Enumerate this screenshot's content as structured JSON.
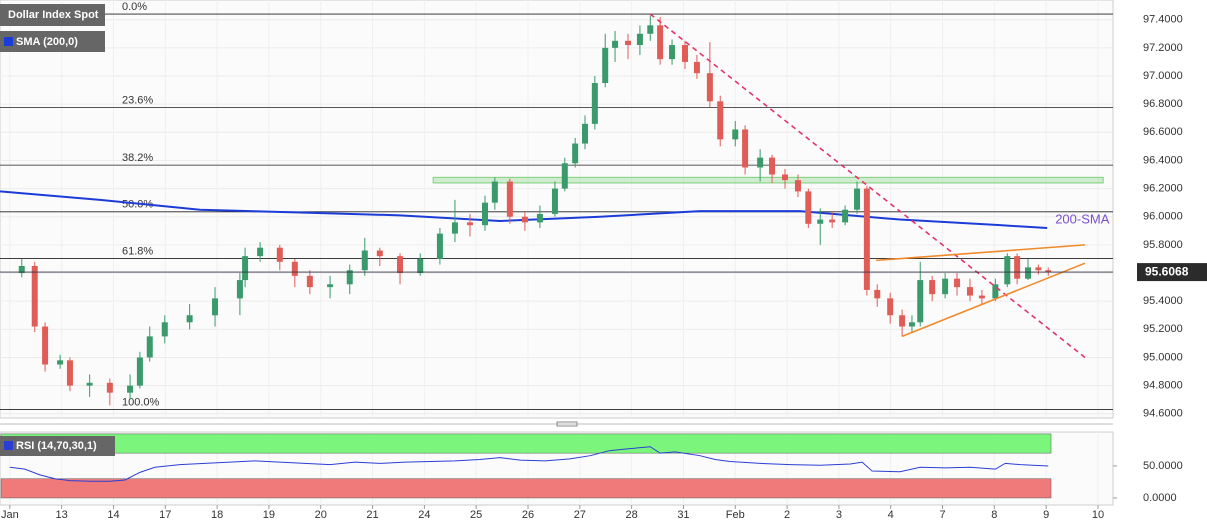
{
  "chart_data": [
    {
      "type": "candlestick",
      "title": "Dollar Index Spot",
      "up_color": "#3a9a6b",
      "down_color": "#e05c57",
      "x": [
        0.23,
        0.48,
        0.68,
        0.97,
        1.16,
        1.54,
        1.93,
        2.32,
        2.51,
        2.7,
        2.99,
        3.47,
        3.96,
        4.44,
        4.54,
        4.83,
        5.21,
        5.5,
        5.79,
        6.18,
        6.56,
        6.85,
        7.14,
        7.53,
        7.92,
        8.3,
        8.59,
        8.88,
        9.17,
        9.36,
        9.65,
        9.94,
        10.23,
        10.52,
        10.71,
        10.91,
        11.1,
        11.29,
        11.49,
        11.68,
        11.93,
        12.16,
        12.36,
        12.55,
        12.78,
        13.03,
        13.26,
        13.51,
        13.71,
        14.0,
        14.19,
        14.48,
        14.71,
        14.96,
        15.21,
        15.41,
        15.64,
        15.87,
        16.12,
        16.35,
        16.54,
        16.74,
        16.99,
        17.22,
        17.41,
        17.57,
        17.8,
        18.05,
        18.28,
        18.53,
        18.76,
        19.02,
        19.25,
        19.44,
        19.65,
        19.85,
        20.04
      ],
      "open": [
        95.6,
        95.65,
        95.22,
        94.95,
        94.98,
        94.8,
        94.82,
        94.75,
        94.8,
        95.0,
        95.15,
        95.25,
        95.3,
        95.42,
        95.55,
        95.72,
        95.78,
        95.68,
        95.58,
        95.5,
        95.52,
        95.62,
        95.76,
        95.72,
        95.6,
        95.7,
        95.88,
        95.96,
        95.94,
        96.1,
        96.25,
        96.0,
        95.96,
        96.02,
        96.2,
        96.38,
        96.52,
        96.66,
        96.95,
        97.2,
        97.25,
        97.22,
        97.3,
        97.36,
        97.12,
        97.22,
        97.1,
        97.02,
        96.82,
        96.55,
        96.62,
        96.35,
        96.42,
        96.3,
        96.26,
        96.18,
        95.95,
        95.98,
        95.96,
        96.05,
        96.2,
        95.48,
        95.42,
        95.3,
        95.22,
        95.25,
        95.55,
        95.45,
        95.56,
        95.5,
        95.44,
        95.42,
        95.52,
        95.72,
        95.56,
        95.64,
        95.62
      ],
      "high": [
        95.7,
        95.68,
        95.25,
        95.02,
        95.0,
        94.88,
        94.85,
        94.88,
        95.04,
        95.22,
        95.3,
        95.38,
        95.5,
        95.6,
        95.78,
        95.82,
        95.8,
        95.7,
        95.62,
        95.58,
        95.66,
        95.85,
        95.78,
        95.74,
        95.74,
        95.92,
        96.12,
        96.02,
        96.15,
        96.28,
        96.27,
        96.03,
        96.08,
        96.25,
        96.42,
        96.56,
        96.72,
        97.0,
        97.3,
        97.32,
        97.3,
        97.36,
        97.43,
        97.42,
        97.26,
        97.25,
        97.15,
        97.24,
        96.86,
        96.68,
        96.65,
        96.48,
        96.44,
        96.34,
        96.3,
        96.2,
        96.06,
        96.04,
        96.08,
        96.25,
        96.22,
        95.52,
        95.46,
        95.34,
        95.3,
        95.68,
        95.58,
        95.6,
        95.6,
        95.56,
        95.48,
        95.56,
        95.74,
        95.74,
        95.7,
        95.66,
        95.64
      ],
      "low": [
        95.57,
        95.18,
        94.9,
        94.92,
        94.76,
        94.72,
        94.66,
        94.7,
        94.78,
        94.97,
        95.1,
        95.2,
        95.22,
        95.3,
        95.5,
        95.68,
        95.62,
        95.5,
        95.45,
        95.42,
        95.45,
        95.58,
        95.65,
        95.52,
        95.58,
        95.66,
        95.82,
        95.86,
        95.9,
        96.05,
        95.95,
        95.9,
        95.92,
        96.0,
        96.18,
        96.35,
        96.48,
        96.62,
        96.92,
        97.1,
        97.12,
        97.15,
        97.25,
        97.08,
        97.08,
        97.05,
        96.98,
        96.78,
        96.5,
        96.5,
        96.3,
        96.25,
        96.24,
        96.2,
        96.14,
        95.92,
        95.8,
        95.92,
        95.94,
        96.02,
        95.44,
        95.36,
        95.24,
        95.15,
        95.18,
        95.22,
        95.4,
        95.42,
        95.44,
        95.4,
        95.38,
        95.4,
        95.5,
        95.52,
        95.55,
        95.59,
        95.58
      ],
      "close": [
        95.65,
        95.22,
        94.95,
        94.98,
        94.8,
        94.82,
        94.75,
        94.8,
        95.0,
        95.15,
        95.25,
        95.3,
        95.42,
        95.55,
        95.72,
        95.78,
        95.68,
        95.58,
        95.5,
        95.52,
        95.62,
        95.76,
        95.72,
        95.6,
        95.7,
        95.88,
        95.96,
        95.94,
        96.1,
        96.25,
        96.0,
        95.96,
        96.02,
        96.2,
        96.38,
        96.52,
        96.66,
        96.95,
        97.2,
        97.25,
        97.22,
        97.3,
        97.36,
        97.12,
        97.22,
        97.1,
        97.02,
        96.82,
        96.55,
        96.62,
        96.35,
        96.42,
        96.3,
        96.26,
        96.18,
        95.95,
        95.98,
        95.96,
        96.05,
        96.2,
        95.48,
        95.42,
        95.3,
        95.22,
        95.25,
        95.55,
        95.45,
        95.56,
        95.5,
        95.44,
        95.42,
        95.52,
        95.72,
        95.56,
        95.64,
        95.62,
        95.6068
      ],
      "series": [
        {
          "name": "SMA (200,0)",
          "color": "#1c3cd8",
          "label": "200-SMA",
          "x": [
            -0.19,
            1.74,
            3.67,
            5.6,
            7.53,
            9.46,
            11.39,
            13.32,
            15.25,
            17.18,
            19.11,
            20.02
          ],
          "values": [
            96.18,
            96.12,
            96.05,
            96.03,
            96.01,
            95.97,
            96.0,
            96.04,
            96.04,
            95.98,
            95.94,
            95.92
          ]
        }
      ],
      "fib_levels": [
        {
          "value": 97.44,
          "label": "0.0%"
        },
        {
          "value": 96.777,
          "label": "23.6%"
        },
        {
          "value": 96.367,
          "label": "38.2%"
        },
        {
          "value": 96.035,
          "label": "50.0%"
        },
        {
          "value": 95.703,
          "label": "61.8%"
        },
        {
          "value": 94.63,
          "label": "100.0%"
        }
      ],
      "trendlines": [
        {
          "color": "#e0356a",
          "dashed": true,
          "x": [
            12.36,
            20.75
          ],
          "values": [
            97.44,
            95.0
          ]
        },
        {
          "color": "#f0892a",
          "dashed": false,
          "x": [
            17.22,
            20.75
          ],
          "values": [
            95.15,
            95.67
          ]
        },
        {
          "color": "#f0892a",
          "dashed": false,
          "x": [
            16.72,
            20.75
          ],
          "values": [
            95.69,
            95.8
          ]
        }
      ],
      "zones": [
        {
          "color": "#7fd07f",
          "x": [
            8.17,
            21.1
          ],
          "values": [
            96.24,
            96.28
          ]
        }
      ],
      "xlim": [
        -0.19,
        21.29
      ],
      "ylim": [
        94.57,
        97.54
      ],
      "xticks": [
        {
          "value": 0,
          "label": "Jan"
        },
        {
          "value": 1,
          "label": "13"
        },
        {
          "value": 2,
          "label": "14"
        },
        {
          "value": 3,
          "label": "17"
        },
        {
          "value": 4,
          "label": "18"
        },
        {
          "value": 5,
          "label": "19"
        },
        {
          "value": 6,
          "label": "20"
        },
        {
          "value": 7,
          "label": "21"
        },
        {
          "value": 8,
          "label": "24"
        },
        {
          "value": 9,
          "label": "25"
        },
        {
          "value": 10,
          "label": "26"
        },
        {
          "value": 11,
          "label": "27"
        },
        {
          "value": 12,
          "label": "28"
        },
        {
          "value": 13,
          "label": "31"
        },
        {
          "value": 14,
          "label": "Feb"
        },
        {
          "value": 15,
          "label": "2"
        },
        {
          "value": 16,
          "label": "3"
        },
        {
          "value": 17,
          "label": "4"
        },
        {
          "value": 18,
          "label": "7"
        },
        {
          "value": 19,
          "label": "8"
        },
        {
          "value": 20,
          "label": "9"
        },
        {
          "value": 21,
          "label": "10"
        }
      ],
      "yticks": [
        {
          "value": 97.4,
          "label": "97.4000"
        },
        {
          "value": 97.2,
          "label": "97.2000"
        },
        {
          "value": 97.0,
          "label": "97.0000"
        },
        {
          "value": 96.8,
          "label": "96.8000"
        },
        {
          "value": 96.6,
          "label": "96.6000"
        },
        {
          "value": 96.4,
          "label": "96.4000"
        },
        {
          "value": 96.2,
          "label": "96.2000"
        },
        {
          "value": 96.0,
          "label": "96.0000"
        },
        {
          "value": 95.8,
          "label": "95.8000"
        },
        {
          "value": 95.6,
          "label": "95.6000"
        },
        {
          "value": 95.4,
          "label": "95.4000"
        },
        {
          "value": 95.2,
          "label": "95.2000"
        },
        {
          "value": 95.0,
          "label": "95.0000"
        },
        {
          "value": 94.8,
          "label": "94.8000"
        },
        {
          "value": 94.6,
          "label": "94.6000"
        }
      ],
      "grid": true
    },
    {
      "type": "line",
      "title": "RSI (14,70,30,1)",
      "color": "#2a3ed6",
      "x": [
        0.0,
        0.29,
        0.58,
        0.87,
        1.16,
        1.54,
        1.93,
        2.22,
        2.51,
        2.8,
        3.28,
        3.76,
        4.25,
        4.73,
        5.21,
        5.69,
        6.18,
        6.66,
        7.14,
        7.63,
        8.11,
        8.59,
        9.07,
        9.46,
        9.85,
        10.33,
        10.81,
        11.2,
        11.58,
        11.97,
        12.36,
        12.55,
        12.84,
        13.32,
        13.61,
        13.9,
        14.48,
        15.06,
        15.64,
        16.22,
        16.45,
        16.64,
        17.18,
        17.57,
        18.05,
        18.53,
        19.02,
        19.21,
        19.5,
        20.04
      ],
      "values": [
        48,
        45,
        36,
        30,
        27,
        26,
        26,
        28,
        40,
        48,
        52,
        54,
        56,
        58,
        56,
        54,
        52,
        56,
        54,
        56,
        57,
        58,
        60,
        63,
        59,
        58,
        61,
        66,
        74,
        77,
        80,
        70,
        72,
        66,
        60,
        57,
        54,
        52,
        51,
        53,
        56,
        42,
        41,
        48,
        47,
        48,
        45,
        54,
        52,
        50
      ],
      "bands": [
        {
          "color": "#7cf57c",
          "values": [
            70,
            100
          ]
        },
        {
          "color": "#f07a7a",
          "values": [
            0,
            30
          ]
        }
      ],
      "xlim": [
        -0.19,
        21.29
      ],
      "ylim": [
        -11,
        103
      ],
      "yticks": [
        {
          "value": 50,
          "label": "50.0000"
        },
        {
          "value": 0,
          "label": "0.0000"
        }
      ]
    }
  ]
}
